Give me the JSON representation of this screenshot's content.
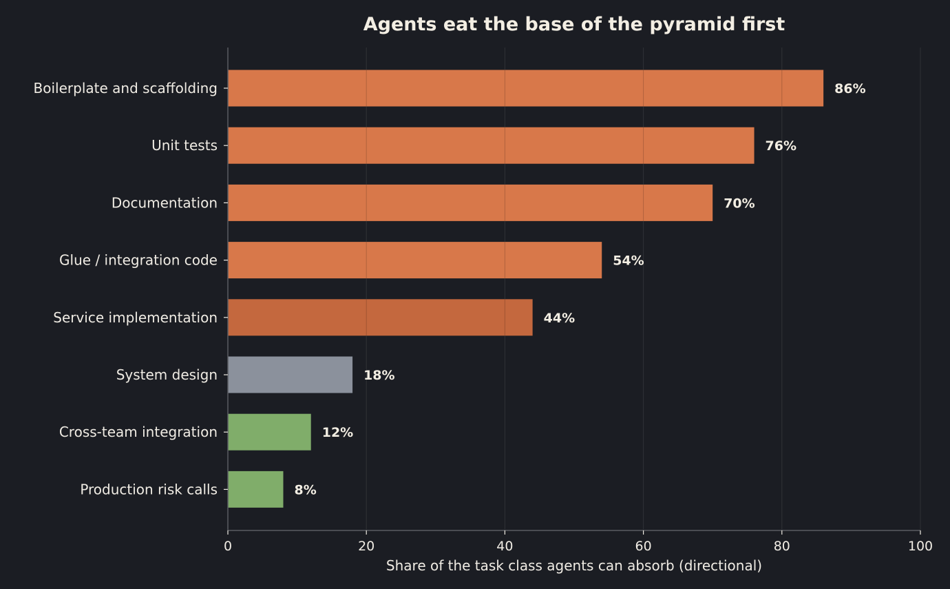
{
  "chart_data": {
    "type": "bar",
    "orientation": "horizontal",
    "title": "Agents eat the base of the pyramid first",
    "xlabel": "Share of the task class agents can absorb (directional)",
    "ylabel": "",
    "xlim": [
      0,
      100
    ],
    "xticks": [
      0,
      20,
      40,
      60,
      80,
      100
    ],
    "grid": true,
    "categories": [
      "Boilerplate and scaffolding",
      "Unit tests",
      "Documentation",
      "Glue / integration code",
      "Service implementation",
      "System design",
      "Cross-team integration",
      "Production risk calls"
    ],
    "values": [
      86,
      76,
      70,
      54,
      44,
      18,
      12,
      8
    ],
    "value_labels": [
      "86%",
      "76%",
      "70%",
      "54%",
      "44%",
      "18%",
      "12%",
      "8%"
    ],
    "bar_colors": [
      "#d8784a",
      "#d8784a",
      "#d8784a",
      "#d8784a",
      "#c4683e",
      "#8b919c",
      "#80ad6a",
      "#80ad6a"
    ]
  },
  "colors": {
    "background": "#1b1d23",
    "grid": "#3a3c42",
    "axis": "#5a5c62",
    "text": "#f0ece4"
  }
}
